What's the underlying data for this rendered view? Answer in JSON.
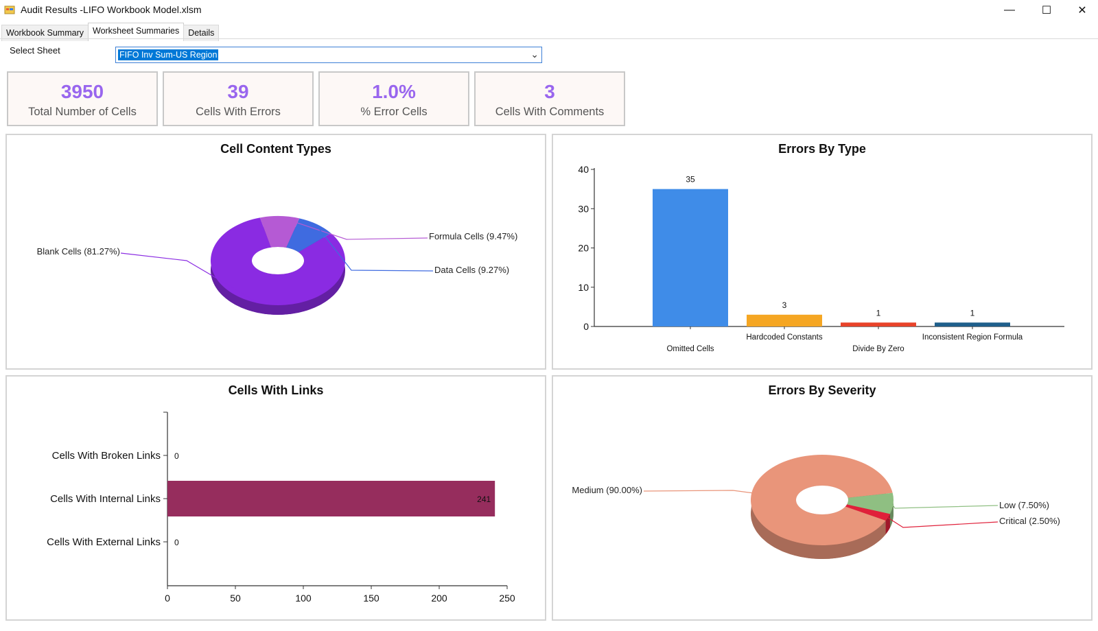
{
  "window": {
    "title": "Audit Results -LIFO Workbook Model.xlsm",
    "minimize": "—",
    "maximize": "☐",
    "close": "✕"
  },
  "tabs": [
    {
      "label": "Workbook Summary"
    },
    {
      "label": "Worksheet Summaries"
    },
    {
      "label": "Details"
    }
  ],
  "select_sheet": {
    "label": "Select Sheet",
    "value": "FIFO Inv Sum-US Region"
  },
  "kpis": [
    {
      "value": "3950",
      "label": "Total Number of Cells"
    },
    {
      "value": "39",
      "label": "Cells With Errors"
    },
    {
      "value": "1.0%",
      "label": "% Error Cells"
    },
    {
      "value": "3",
      "label": "Cells With Comments"
    }
  ],
  "panels": {
    "cell_content": {
      "title": "Cell Content Types"
    },
    "errors_by_type": {
      "title": "Errors By Type"
    },
    "cells_with_links": {
      "title": "Cells With Links"
    },
    "errors_by_severity": {
      "title": "Errors By Severity"
    }
  },
  "chart_data": [
    {
      "type": "pie",
      "title": "Cell Content Types",
      "slices": [
        {
          "label": "Blank Cells (81.27%)",
          "value": 81.27,
          "color": "#8a2be2"
        },
        {
          "label": "Formula Cells (9.47%)",
          "value": 9.47,
          "color": "#b55ad4"
        },
        {
          "label": "Data Cells (9.27%)",
          "value": 9.27,
          "color": "#3f6be0"
        }
      ]
    },
    {
      "type": "bar",
      "title": "Errors By Type",
      "categories": [
        "Omitted Cells",
        "Hardcoded Constants",
        "Divide By Zero",
        "Inconsistent Region Formula"
      ],
      "values": [
        35,
        3,
        1,
        1
      ],
      "colors": [
        "#3f8ce8",
        "#f5a623",
        "#e8432a",
        "#1f5f8b"
      ],
      "ylim": [
        0,
        40
      ],
      "yticks": [
        0,
        10,
        20,
        30,
        40
      ]
    },
    {
      "type": "bar",
      "orientation": "horizontal",
      "title": "Cells With Links",
      "categories": [
        "Cells With Broken Links",
        "Cells With Internal Links",
        "Cells With External Links"
      ],
      "values": [
        0,
        241,
        0
      ],
      "color": "#962d5d",
      "xlim": [
        0,
        250
      ],
      "xticks": [
        0,
        50,
        100,
        150,
        200,
        250
      ]
    },
    {
      "type": "pie",
      "title": "Errors By Severity",
      "slices": [
        {
          "label": "Medium (90.00%)",
          "value": 90.0,
          "color": "#e9957a"
        },
        {
          "label": "Low (7.50%)",
          "value": 7.5,
          "color": "#8fbf82"
        },
        {
          "label": "Critical (2.50%)",
          "value": 2.5,
          "color": "#e0203a"
        }
      ]
    }
  ]
}
